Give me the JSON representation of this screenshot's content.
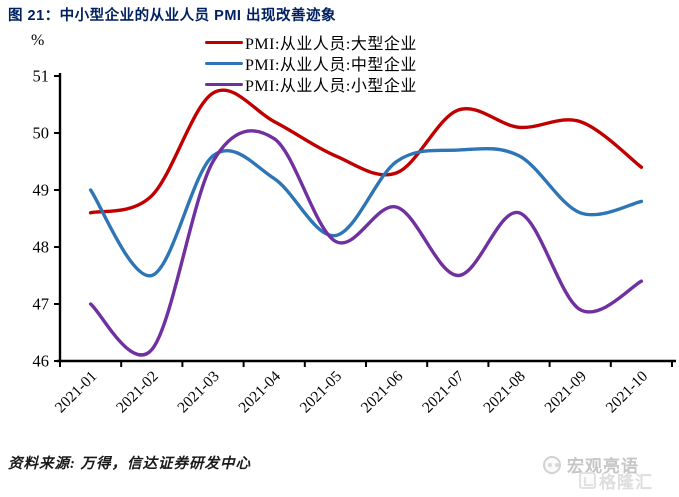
{
  "figure": {
    "title": "图 21：中小型企业的从业人员 PMI 出现改善迹象",
    "y_unit": "%",
    "source_note": "资料来源: 万得，信达证券研发中心"
  },
  "watermark": {
    "primary": "宏观亮语",
    "secondary": "格隆汇"
  },
  "colors": {
    "title": "#002060",
    "axis": "#000000",
    "tick_label": "#000000"
  },
  "chart_data": {
    "type": "line",
    "smooth": true,
    "grid": false,
    "legend_position": "top-center",
    "x": [
      "2021-01",
      "2021-02",
      "2021-03",
      "2021-04",
      "2021-05",
      "2021-06",
      "2021-07",
      "2021-08",
      "2021-09",
      "2021-10"
    ],
    "series": [
      {
        "name": "PMI:从业人员:大型企业",
        "color": "#C00000",
        "values": [
          48.6,
          48.9,
          50.7,
          50.2,
          49.6,
          49.3,
          50.4,
          50.1,
          50.2,
          49.4
        ]
      },
      {
        "name": "PMI:从业人员:中型企业",
        "color": "#2E75B6",
        "values": [
          49.0,
          47.5,
          49.6,
          49.2,
          48.2,
          49.5,
          49.7,
          49.6,
          48.6,
          48.8
        ]
      },
      {
        "name": "PMI:从业人员:小型企业",
        "color": "#7030A0",
        "values": [
          47.0,
          46.2,
          49.5,
          49.9,
          48.1,
          48.7,
          47.5,
          48.6,
          46.9,
          47.4
        ]
      }
    ],
    "ylim": [
      46,
      51
    ],
    "yticks": [
      46,
      47,
      48,
      49,
      50,
      51
    ],
    "ylabel": "%",
    "xlabel": ""
  }
}
